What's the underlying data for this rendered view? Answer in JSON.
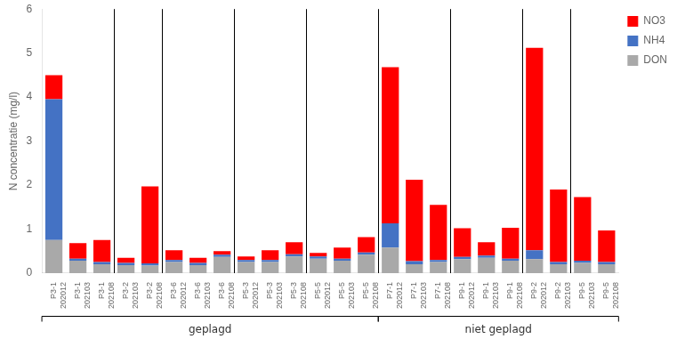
{
  "chart_data": {
    "type": "bar",
    "stacked": true,
    "categories": [
      "P3-1\n202012",
      "P3-1\n202103",
      "P3-1\n202108",
      "P3-2\n202103",
      "P3-2\n202108",
      "P3-6\n202012",
      "P3-6\n202103",
      "P3-6\n202108",
      "P5-3\n202012",
      "P5-3\n202103",
      "P5-3\n202108",
      "P5-5\n202012",
      "P5-5\n202103",
      "P5-5\n202108",
      "P7-1\n202012",
      "P7-1\n202103",
      "P7-1\n202108",
      "P9-1\n202012",
      "P9-1\n202103",
      "P9-1\n202108",
      "P9-2\n202012",
      "P9-2\n202103",
      "P9-5\n202103",
      "P9-5\n202108"
    ],
    "series": [
      {
        "name": "DON",
        "color": "#A9A9A9",
        "values": [
          0.75,
          0.28,
          0.2,
          0.18,
          0.17,
          0.25,
          0.18,
          0.37,
          0.25,
          0.25,
          0.38,
          0.33,
          0.28,
          0.42,
          0.58,
          0.2,
          0.25,
          0.32,
          0.35,
          0.28,
          0.32,
          0.2,
          0.23,
          0.2
        ]
      },
      {
        "name": "NH4",
        "color": "#4472C4",
        "values": [
          3.2,
          0.05,
          0.05,
          0.05,
          0.05,
          0.05,
          0.05,
          0.05,
          0.05,
          0.05,
          0.05,
          0.05,
          0.05,
          0.05,
          0.55,
          0.07,
          0.05,
          0.05,
          0.05,
          0.05,
          0.2,
          0.05,
          0.05,
          0.05
        ]
      },
      {
        "name": "NO3",
        "color": "#FF0000",
        "values": [
          0.55,
          0.35,
          0.5,
          0.12,
          1.75,
          0.22,
          0.12,
          0.08,
          0.08,
          0.22,
          0.27,
          0.08,
          0.25,
          0.35,
          3.55,
          1.85,
          1.25,
          0.65,
          0.3,
          0.7,
          4.6,
          1.65,
          1.45,
          0.72
        ]
      }
    ],
    "ylabel": "N concentratie (mg/l)",
    "ylim": [
      0,
      6
    ],
    "yticks": [
      0,
      1,
      2,
      3,
      4,
      5,
      6
    ],
    "grid": false,
    "legend": "upper right",
    "annotations": [
      {
        "text": "geplagd",
        "from": "P3-1\n202012",
        "to": "P5-5\n202108"
      },
      {
        "text": "niet geplagd",
        "from": "P7-1\n202012",
        "to": "P9-5\n202108"
      }
    ],
    "separators_after": [
      "P3-1\n202108",
      "P3-2\n202108",
      "P3-6\n202108",
      "P5-3\n202108",
      "P5-5\n202108",
      "P7-1\n202108",
      "P9-1\n202108",
      "P9-2\n202103"
    ]
  }
}
